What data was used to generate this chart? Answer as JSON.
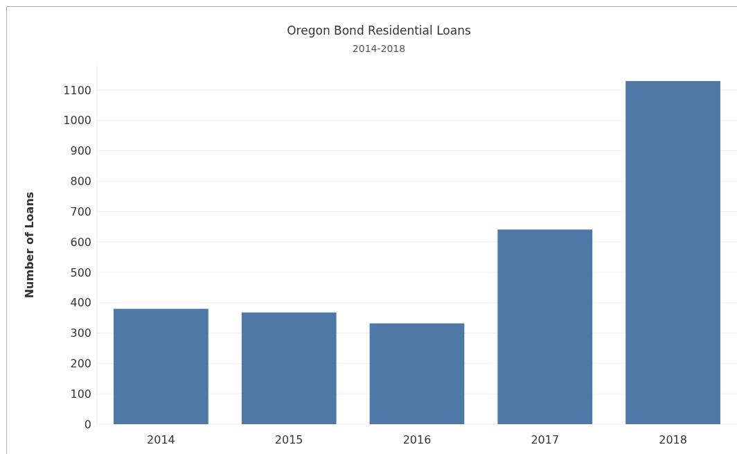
{
  "chart_data": {
    "type": "bar",
    "title": "Oregon Bond Residential Loans",
    "subtitle": "2014-2018",
    "ylabel": "Number of Loans",
    "categories": [
      "2014",
      "2015",
      "2016",
      "2017",
      "2018"
    ],
    "values": [
      380,
      368,
      332,
      641,
      1130
    ],
    "color": "#4e79a7",
    "ylim": [
      0,
      1180
    ],
    "yticks": [
      0,
      100,
      200,
      300,
      400,
      500,
      600,
      700,
      800,
      900,
      1000,
      1100
    ],
    "grid": "y"
  }
}
